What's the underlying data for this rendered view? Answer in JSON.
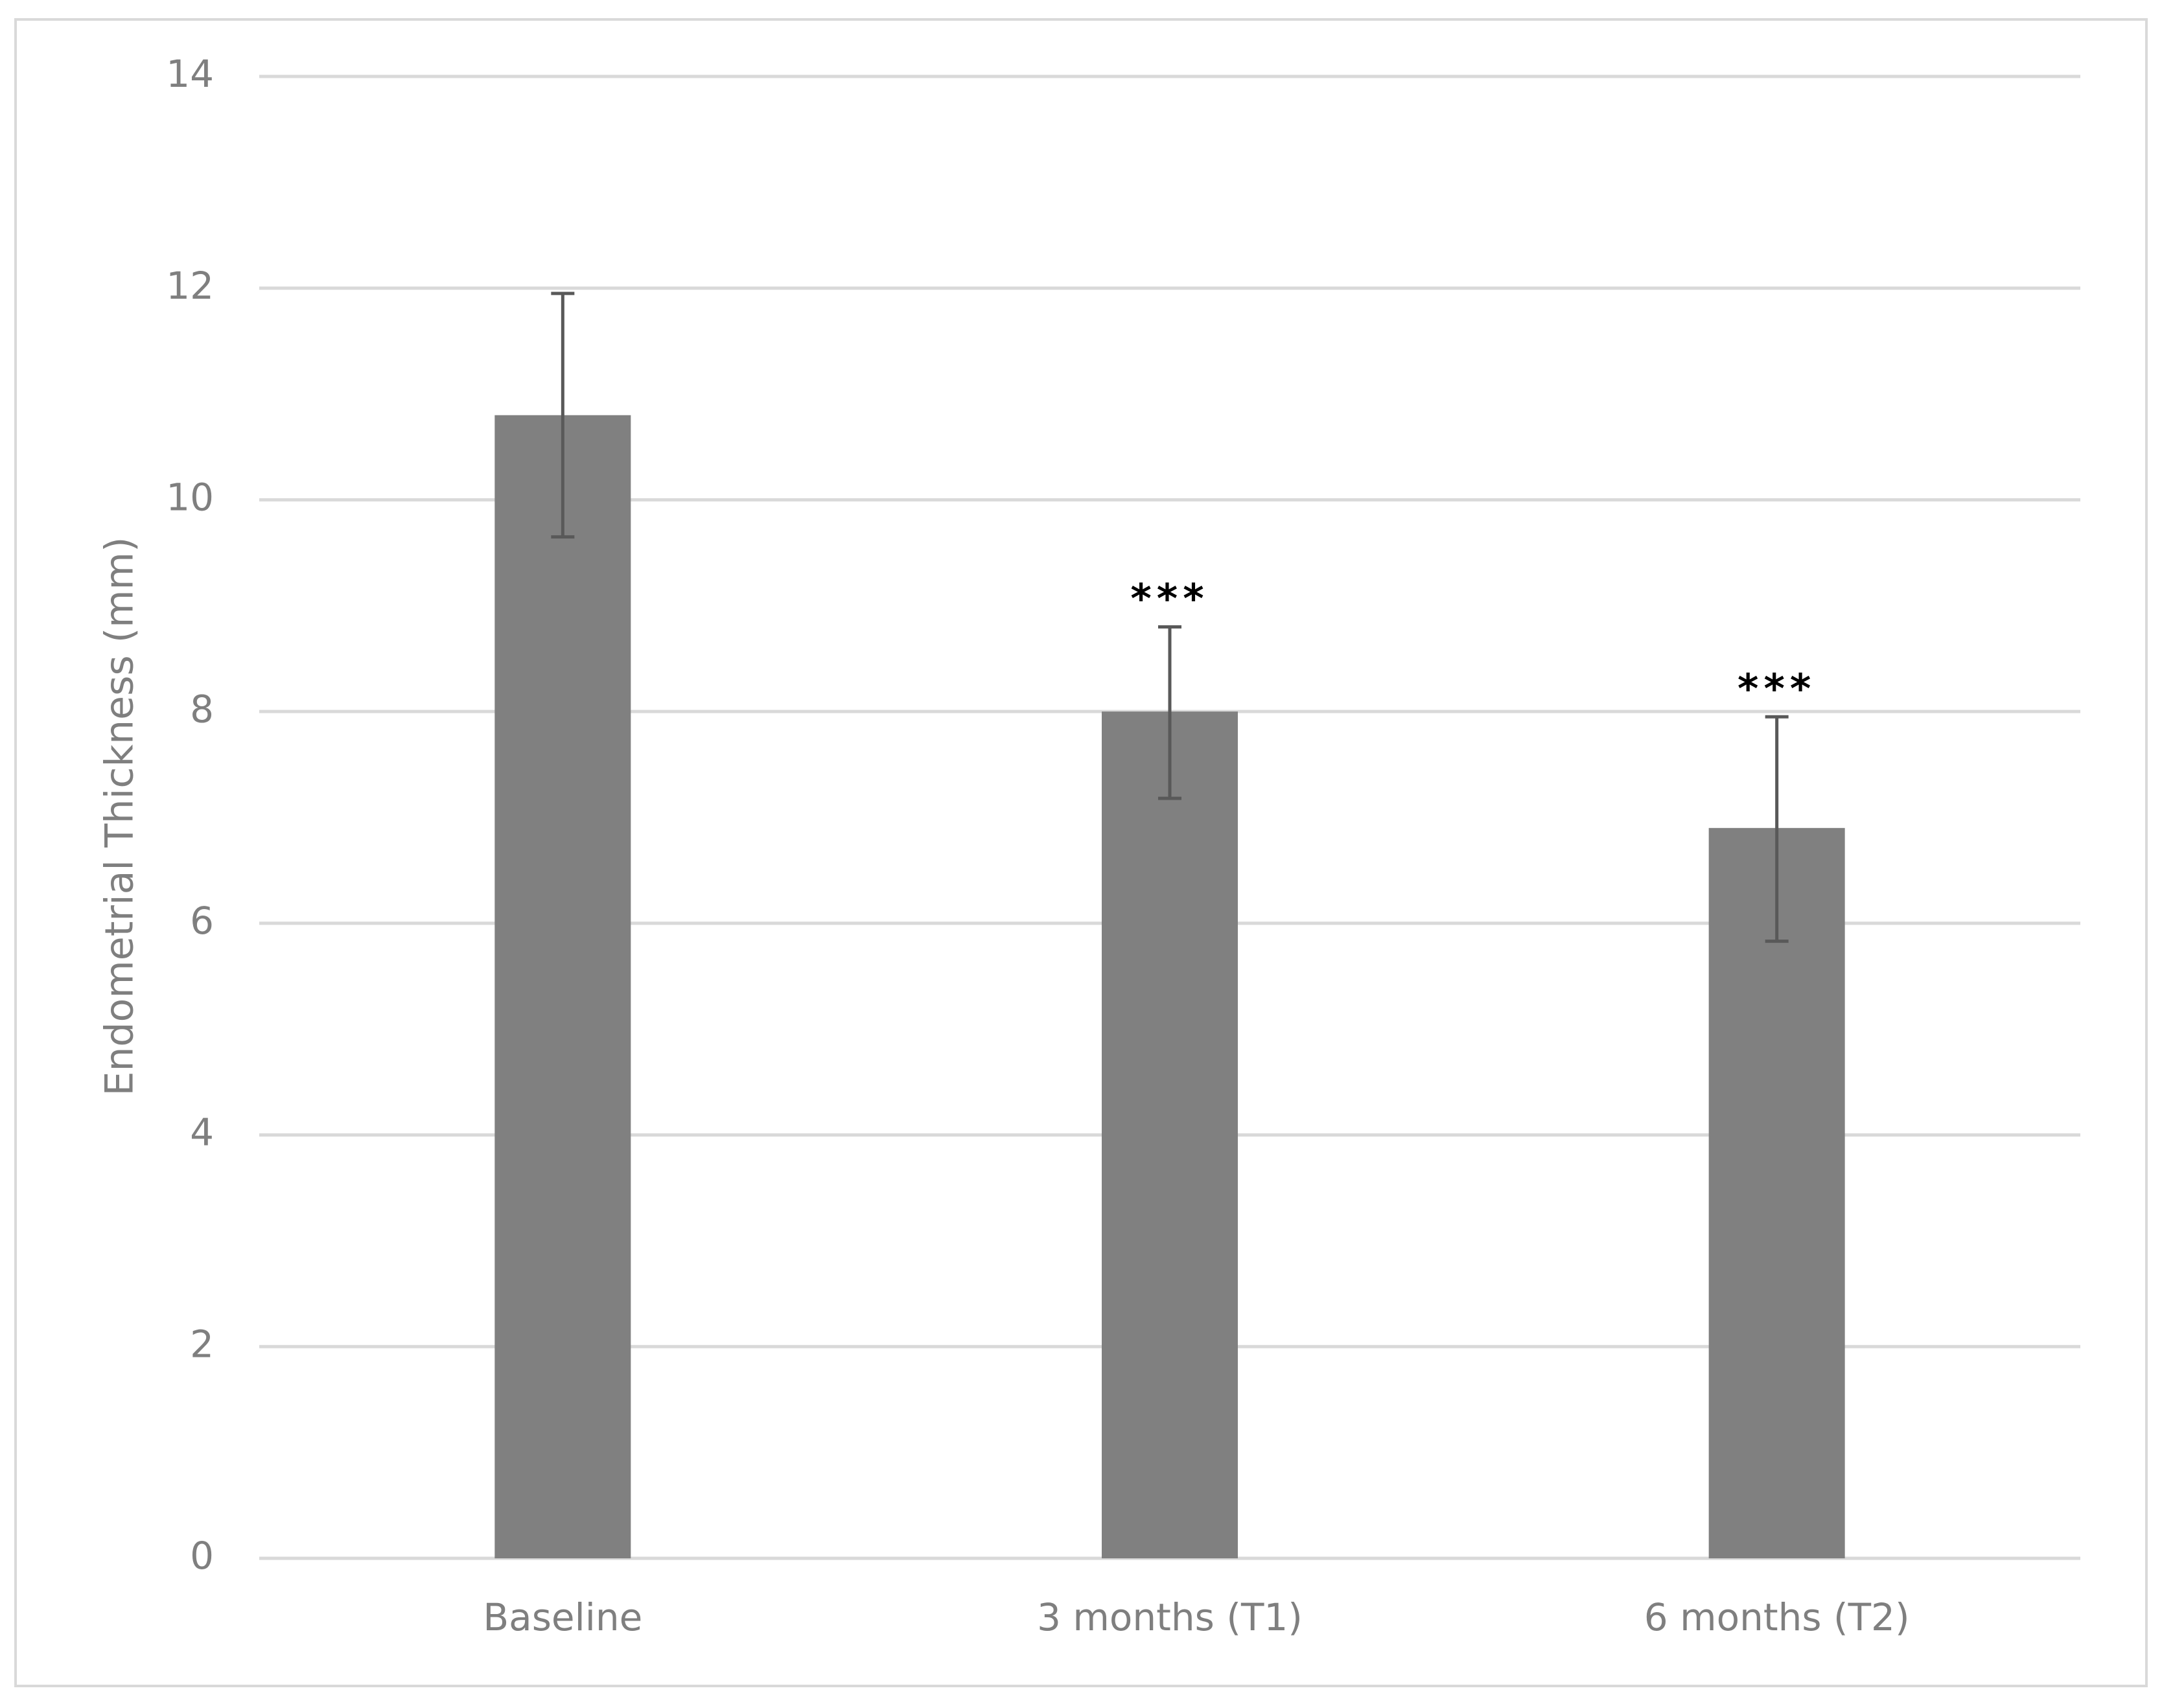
{
  "chart_data": {
    "type": "bar",
    "title": "",
    "xlabel": "",
    "ylabel": "Endometrial Thickness (mm)",
    "categories": [
      "Baseline",
      "3 months (T1)",
      "6 months (T2)"
    ],
    "values": [
      10.8,
      8.0,
      6.9
    ],
    "error_bars": [
      {
        "lower": 9.65,
        "upper": 11.95
      },
      {
        "lower": 7.18,
        "upper": 8.8
      },
      {
        "lower": 5.83,
        "upper": 7.95
      }
    ],
    "significance": [
      "",
      "***",
      "***"
    ],
    "yticks": [
      "0",
      "2",
      "4",
      "6",
      "8",
      "10",
      "12",
      "14"
    ],
    "ylim": [
      0,
      14
    ],
    "grid": true,
    "legend": "none",
    "colors": {
      "bar": "#808080",
      "error_bar": "#595959",
      "grid": "#d9d9d9",
      "frame": "#d9d9d9"
    }
  }
}
